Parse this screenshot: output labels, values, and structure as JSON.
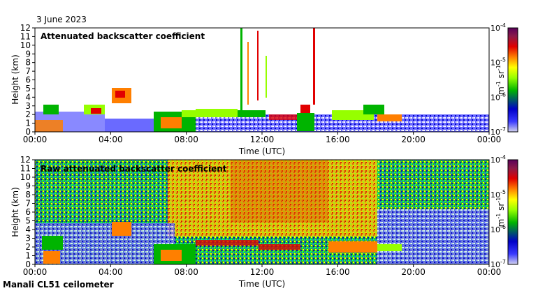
{
  "date": "3 June 2023",
  "footer": "Manali CL51 ceilometer",
  "unit_main": "m",
  "unit_main_exp": "-1",
  "unit_second": " sr",
  "unit_second_exp": "-1",
  "colors": {
    "colormap": [
      "#d4d4ee",
      "#3a3aff",
      "#0000c8",
      "#00b400",
      "#96ff00",
      "#ffff00",
      "#ff7f00",
      "#e10000",
      "#8b1a4a",
      "#5a005a"
    ]
  },
  "chart_data": [
    {
      "type": "heatmap",
      "title": "Attenuated backscatter coefficient",
      "xlabel": "Time (UTC)",
      "ylabel": "Height (km)",
      "x_ticks": [
        "00:00",
        "04:00",
        "08:00",
        "12:00",
        "16:00",
        "20:00",
        "00:00"
      ],
      "y_ticks": [
        "0",
        "1",
        "2",
        "3",
        "4",
        "5",
        "6",
        "7",
        "8",
        "9",
        "10",
        "11",
        "12"
      ],
      "xlim": [
        "00:00",
        "24:00"
      ],
      "ylim": [
        0,
        12
      ],
      "colorbar": {
        "scale": "log",
        "range": [
          1e-07,
          0.0001
        ],
        "tick_labels": [
          "10",
          "10",
          "10",
          "10"
        ],
        "tick_exponents": [
          "-7",
          "-6",
          "-5",
          "-4"
        ]
      },
      "features": [
        {
          "desc": "boundary layer",
          "time": [
            "00:00",
            "05:30"
          ],
          "height_km": [
            0,
            3.2
          ]
        },
        {
          "desc": "aerosol layer",
          "time": [
            "04:10",
            "05:00"
          ],
          "height_km": [
            3.2,
            5
          ]
        },
        {
          "desc": "boundary layer",
          "time": [
            "06:00",
            "24:00"
          ],
          "height_km": [
            0,
            2.8
          ]
        },
        {
          "desc": "rain streaks",
          "time": [
            "10:50",
            "14:50"
          ],
          "height_km": [
            2,
            12
          ]
        }
      ]
    },
    {
      "type": "heatmap",
      "title": "Raw attenuated backscatter coefficient",
      "xlabel": "Time (UTC)",
      "ylabel": "Height (km)",
      "x_ticks": [
        "00:00",
        "04:00",
        "08:00",
        "12:00",
        "16:00",
        "20:00",
        "00:00"
      ],
      "y_ticks": [
        "0",
        "1",
        "2",
        "3",
        "4",
        "5",
        "6",
        "7",
        "8",
        "9",
        "10",
        "11",
        "12"
      ],
      "xlim": [
        "00:00",
        "24:00"
      ],
      "ylim": [
        0,
        12
      ],
      "colorbar": {
        "scale": "log",
        "range": [
          1e-07,
          0.0001
        ],
        "tick_labels": [
          "10",
          "10",
          "10",
          "10"
        ],
        "tick_exponents": [
          "-7",
          "-6",
          "-5",
          "-4"
        ]
      },
      "features": [
        {
          "desc": "noisy background",
          "time": [
            "00:00",
            "24:00"
          ],
          "height_km": [
            0,
            12
          ]
        },
        {
          "desc": "high noise daytime",
          "time": [
            "08:00",
            "17:00"
          ],
          "height_km": [
            3,
            12
          ]
        },
        {
          "desc": "boundary layer",
          "time": [
            "00:00",
            "20:00"
          ],
          "height_km": [
            0,
            3
          ]
        }
      ]
    }
  ]
}
